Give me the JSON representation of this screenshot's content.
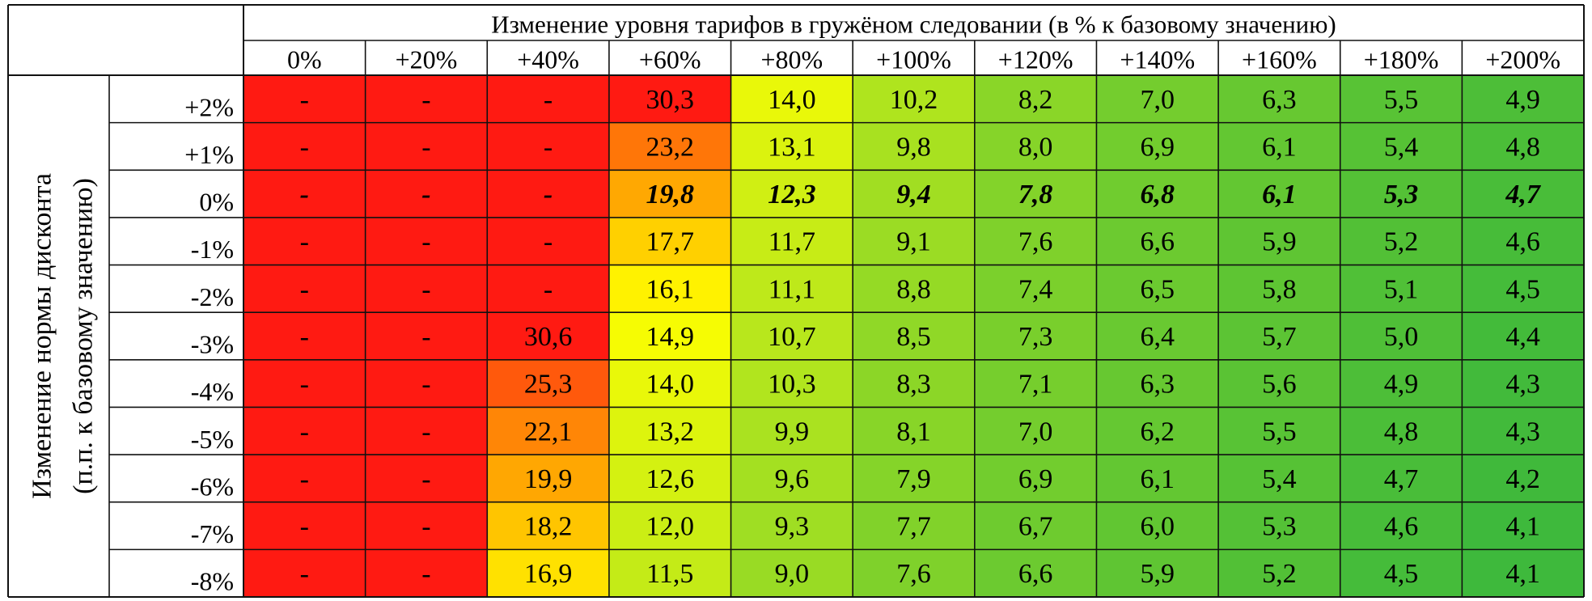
{
  "chart_data": {
    "type": "heatmap",
    "title": "Изменение уровня тарифов в гружёном следовании (в % к базовому значению)",
    "ylabel": [
      "Изменение нормы дисконта",
      "(п.п. к базовому значению)"
    ],
    "columns": [
      "0%",
      "+20%",
      "+40%",
      "+60%",
      "+80%",
      "+100%",
      "+120%",
      "+140%",
      "+160%",
      "+180%",
      "+200%"
    ],
    "rows": [
      "+2%",
      "+1%",
      "0%",
      "-1%",
      "-2%",
      "-3%",
      "-4%",
      "-5%",
      "-6%",
      "-7%",
      "-8%"
    ],
    "highlight_row": "0%",
    "values": [
      [
        null,
        null,
        null,
        "30,3",
        "14,0",
        "10,2",
        "8,2",
        "7,0",
        "6,3",
        "5,5",
        "4,9"
      ],
      [
        null,
        null,
        null,
        "23,2",
        "13,1",
        "9,8",
        "8,0",
        "6,9",
        "6,1",
        "5,4",
        "4,8"
      ],
      [
        null,
        null,
        null,
        "19,8",
        "12,3",
        "9,4",
        "7,8",
        "6,8",
        "6,1",
        "5,3",
        "4,7"
      ],
      [
        null,
        null,
        null,
        "17,7",
        "11,7",
        "9,1",
        "7,6",
        "6,6",
        "5,9",
        "5,2",
        "4,6"
      ],
      [
        null,
        null,
        null,
        "16,1",
        "11,1",
        "8,8",
        "7,4",
        "6,5",
        "5,8",
        "5,1",
        "4,5"
      ],
      [
        null,
        null,
        "30,6",
        "14,9",
        "10,7",
        "8,5",
        "7,3",
        "6,4",
        "5,7",
        "5,0",
        "4,4"
      ],
      [
        null,
        null,
        "25,3",
        "14,0",
        "10,3",
        "8,3",
        "7,1",
        "6,3",
        "5,6",
        "4,9",
        "4,3"
      ],
      [
        null,
        null,
        "22,1",
        "13,2",
        "9,9",
        "8,1",
        "7,0",
        "6,2",
        "5,5",
        "4,8",
        "4,3"
      ],
      [
        null,
        null,
        "19,9",
        "12,6",
        "9,6",
        "7,9",
        "6,9",
        "6,1",
        "5,4",
        "4,7",
        "4,2"
      ],
      [
        null,
        null,
        "18,2",
        "12,0",
        "9,3",
        "7,7",
        "6,7",
        "6,0",
        "5,3",
        "4,6",
        "4,1"
      ],
      [
        null,
        null,
        "16,9",
        "11,5",
        "9,0",
        "7,6",
        "6,6",
        "5,9",
        "5,2",
        "4,5",
        "4,1"
      ]
    ],
    "missing_label": "-",
    "colors": {
      "missing": "#ff1a12",
      "scale": [
        "#ff1a12",
        "#ff6a0a",
        "#ffb400",
        "#ffff00",
        "#b5e61d",
        "#3cb83c"
      ],
      "grid": "#111111"
    }
  }
}
